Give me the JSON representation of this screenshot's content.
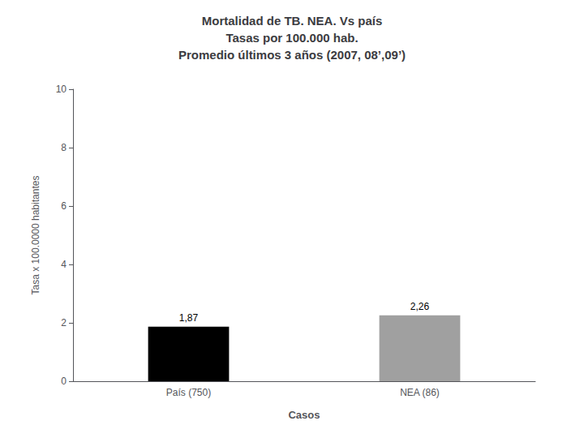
{
  "chart_data": {
    "type": "bar",
    "title": "Mortalidad de TB. NEA. Vs país\nTasas por 100.000 hab.\nPromedio últimos 3 años (2007, 08’,09’)",
    "xlabel": "Casos",
    "ylabel": "Tasa x 100.0000 habitantes",
    "categories": [
      "País (750)",
      "NEA (86)"
    ],
    "values": [
      1.87,
      2.26
    ],
    "value_labels": [
      "1,87",
      "2,26"
    ],
    "colors": [
      "#000000",
      "#a0a0a0"
    ],
    "ylim": [
      0,
      10
    ],
    "yticks": [
      0,
      2,
      4,
      6,
      8,
      10
    ],
    "grid": false
  }
}
